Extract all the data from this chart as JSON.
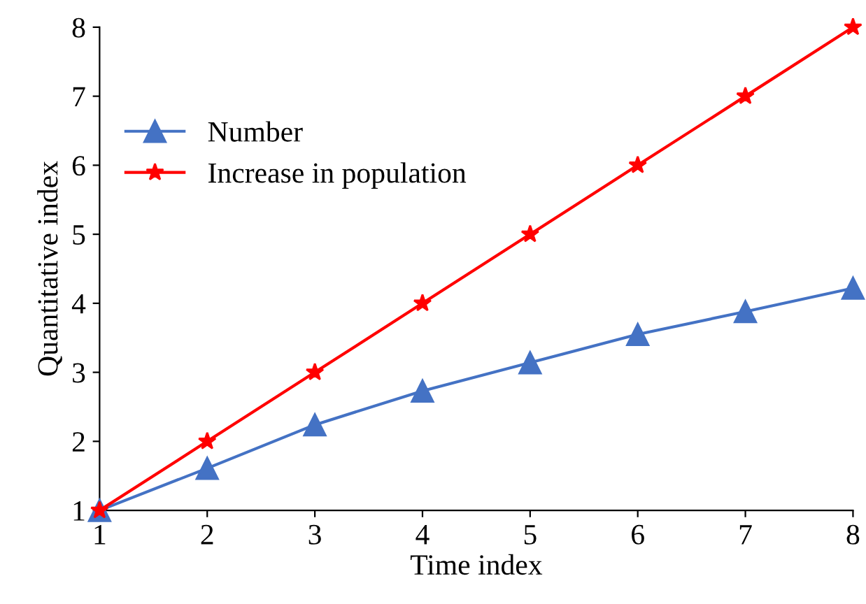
{
  "chart_data": {
    "type": "line",
    "xlabel": "Time index",
    "ylabel": "Quantitative index",
    "x": [
      1,
      2,
      3,
      4,
      5,
      6,
      7,
      8
    ],
    "series": [
      {
        "name": "Number",
        "color": "#4472c4",
        "marker": "triangle",
        "values": [
          1,
          1.61,
          2.24,
          2.73,
          3.14,
          3.55,
          3.88,
          4.22
        ]
      },
      {
        "name": "Increase in population",
        "color": "#ff0000",
        "marker": "star",
        "values": [
          1,
          2,
          3,
          4,
          5,
          6,
          7,
          8
        ]
      }
    ],
    "xlim": [
      1,
      8
    ],
    "xticks": [
      1,
      2,
      3,
      4,
      5,
      6,
      7,
      8
    ],
    "ylim": [
      1,
      8
    ],
    "yticks": [
      1,
      2,
      3,
      4,
      5,
      6,
      7,
      8
    ],
    "grid": false,
    "legend": "top left",
    "line_style": "solid"
  }
}
